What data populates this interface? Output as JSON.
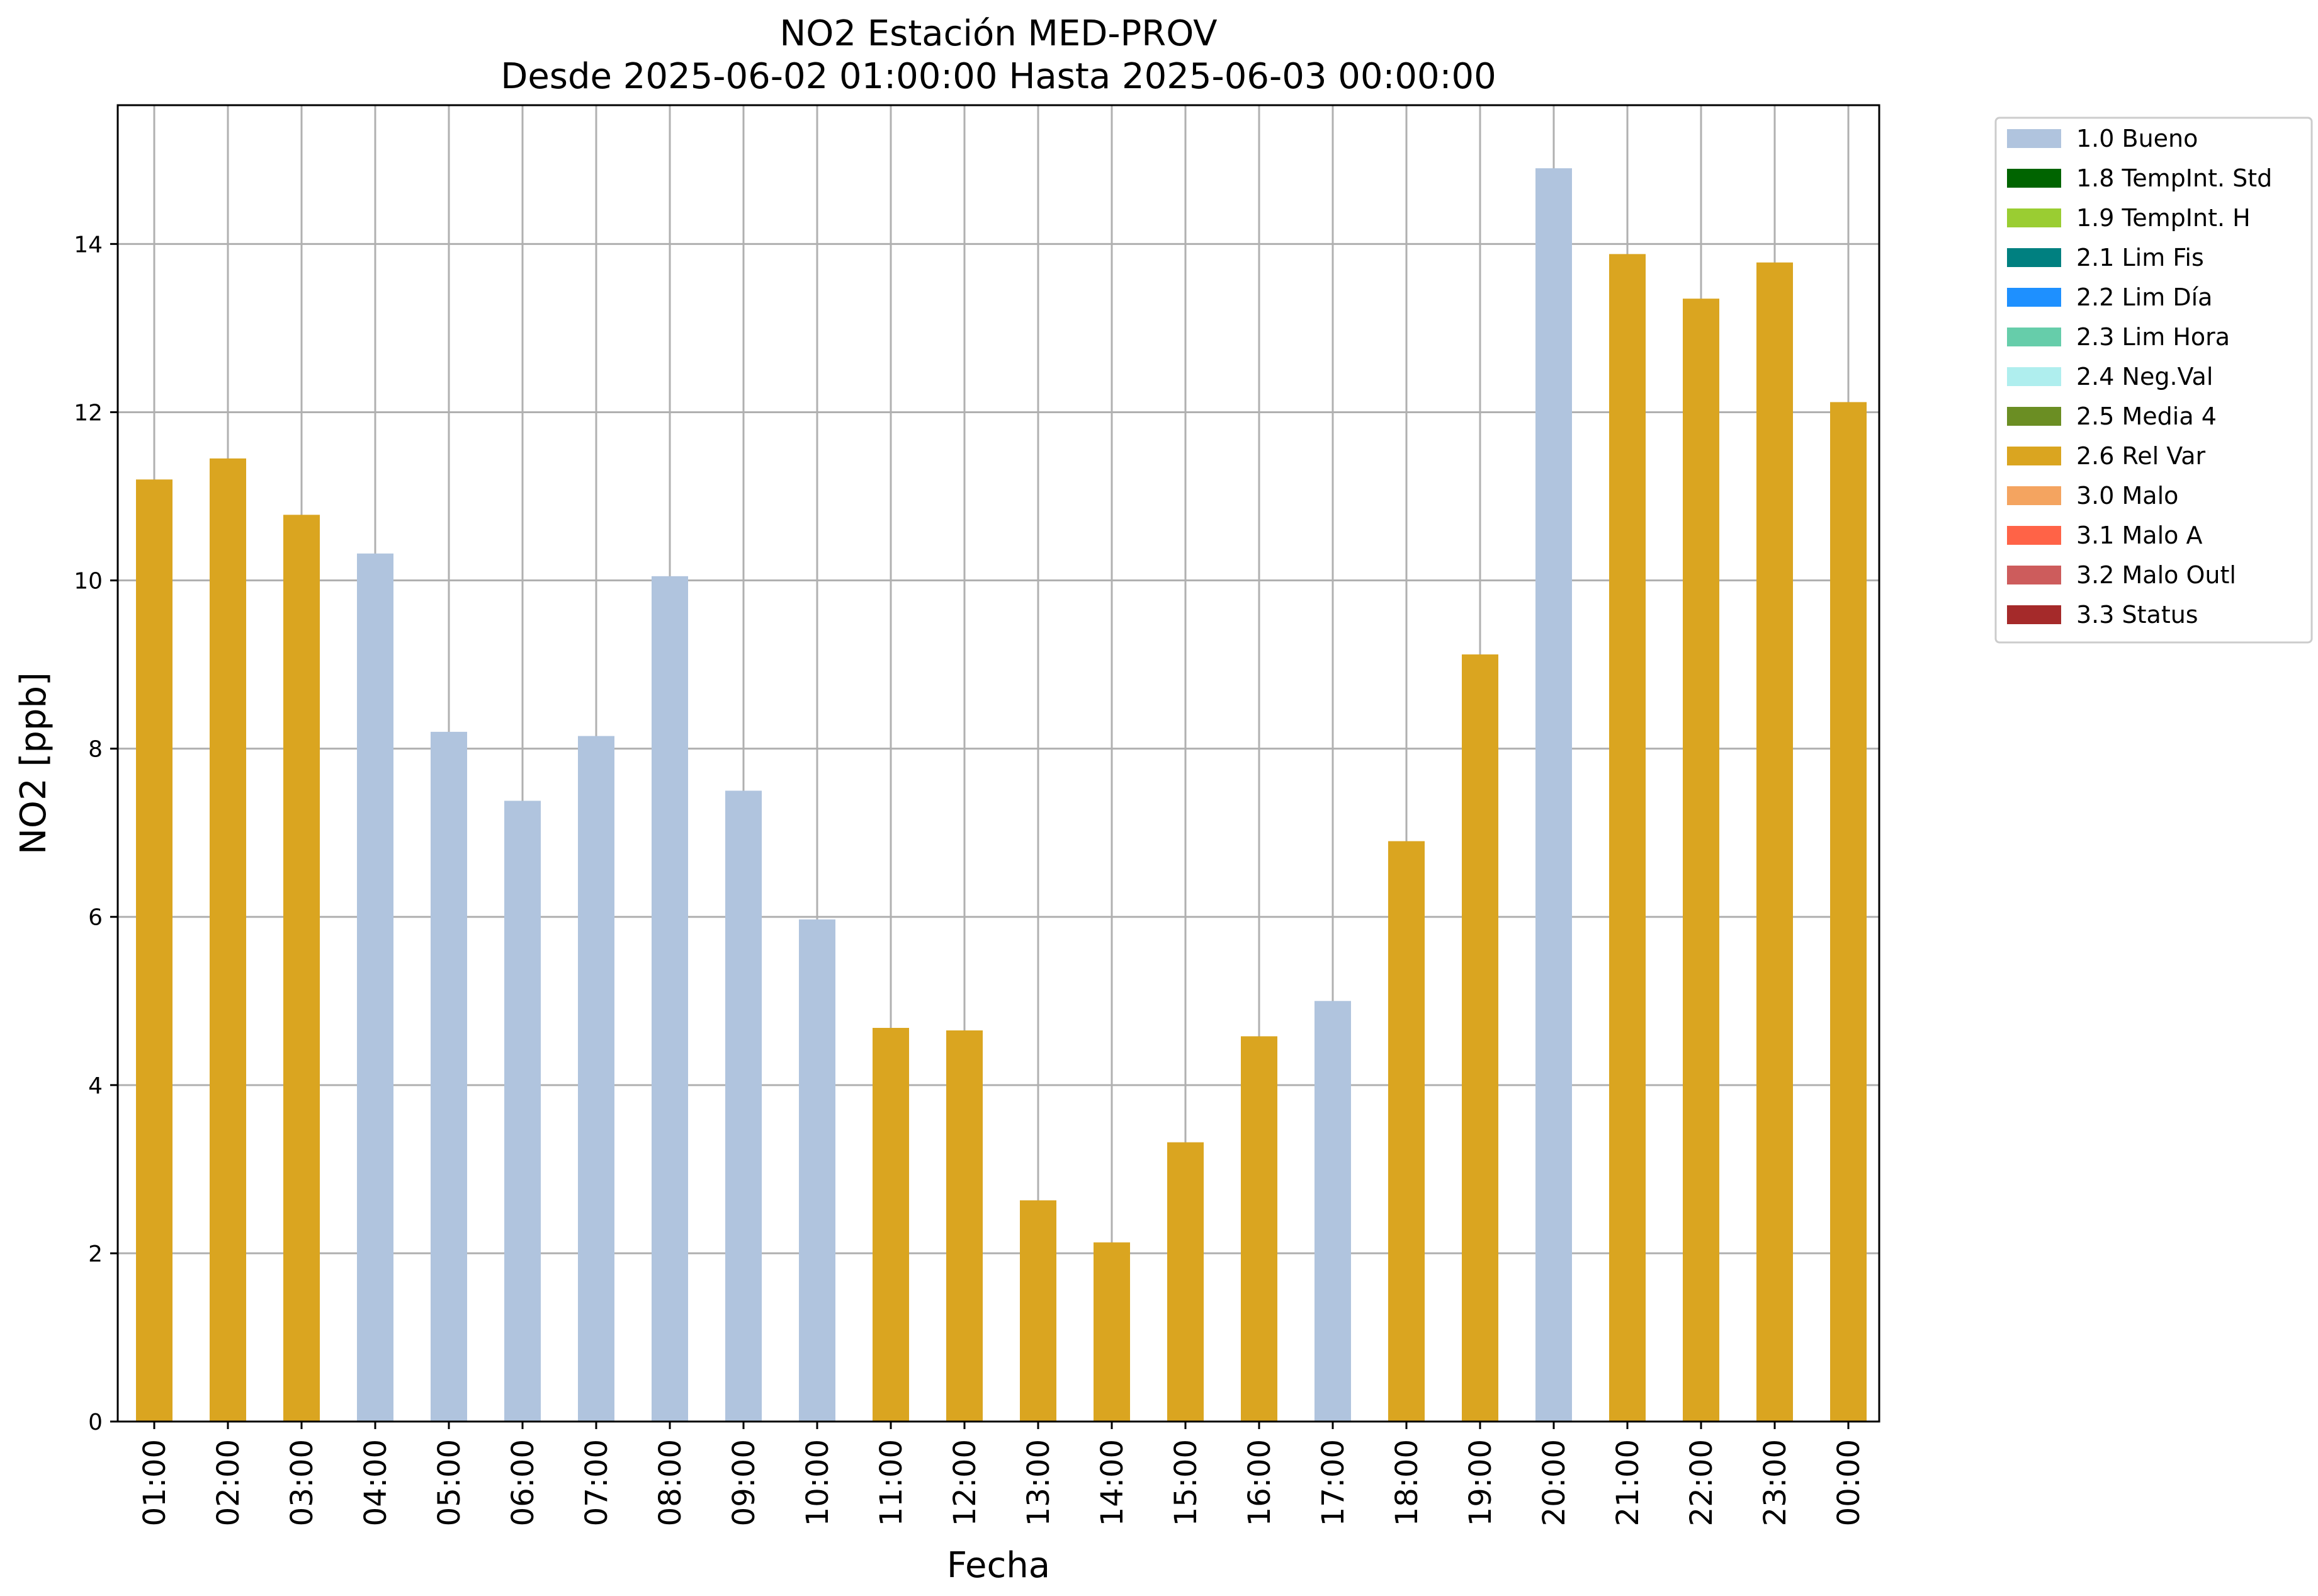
{
  "chart_data": {
    "type": "bar",
    "title": "NO2 Estación MED-PROV",
    "subtitle": "Desde 2025-06-02 01:00:00 Hasta 2025-06-03 00:00:00",
    "xlabel": "Fecha",
    "ylabel": "NO2 [ppb]",
    "ylim": [
      0,
      15.65
    ],
    "yticks": [
      "0",
      "2",
      "4",
      "6",
      "8",
      "10",
      "12",
      "14"
    ],
    "grid": true,
    "legend_position": "outside-right",
    "categories": [
      "01:00",
      "02:00",
      "03:00",
      "04:00",
      "05:00",
      "06:00",
      "07:00",
      "08:00",
      "09:00",
      "10:00",
      "11:00",
      "12:00",
      "13:00",
      "14:00",
      "15:00",
      "16:00",
      "17:00",
      "18:00",
      "19:00",
      "20:00",
      "21:00",
      "22:00",
      "23:00",
      "00:00"
    ],
    "values": [
      11.2,
      11.45,
      10.78,
      10.32,
      8.2,
      7.38,
      8.15,
      10.05,
      7.5,
      5.97,
      4.68,
      4.65,
      2.63,
      2.13,
      3.32,
      4.58,
      5.0,
      6.9,
      9.12,
      14.9,
      13.88,
      13.35,
      13.78,
      12.12
    ],
    "flags": [
      "2.6 Rel Var",
      "2.6 Rel Var",
      "2.6 Rel Var",
      "1.0 Bueno",
      "1.0 Bueno",
      "1.0 Bueno",
      "1.0 Bueno",
      "1.0 Bueno",
      "1.0 Bueno",
      "1.0 Bueno",
      "2.6 Rel Var",
      "2.6 Rel Var",
      "2.6 Rel Var",
      "2.6 Rel Var",
      "2.6 Rel Var",
      "2.6 Rel Var",
      "1.0 Bueno",
      "2.6 Rel Var",
      "2.6 Rel Var",
      "1.0 Bueno",
      "2.6 Rel Var",
      "2.6 Rel Var",
      "2.6 Rel Var",
      "2.6 Rel Var"
    ],
    "legend": [
      {
        "label": "1.0 Bueno",
        "color": "#b0c4de"
      },
      {
        "label": "1.8 TempInt. Std",
        "color": "#006400"
      },
      {
        "label": "1.9 TempInt. H",
        "color": "#9acd32"
      },
      {
        "label": "2.1 Lim Fis",
        "color": "#008080"
      },
      {
        "label": "2.2 Lim Día",
        "color": "#1e90ff"
      },
      {
        "label": "2.3 Lim Hora",
        "color": "#66cdaa"
      },
      {
        "label": "2.4 Neg.Val",
        "color": "#afeeee"
      },
      {
        "label": "2.5 Media 4",
        "color": "#6b8e23"
      },
      {
        "label": "2.6 Rel Var",
        "color": "#daa520"
      },
      {
        "label": "3.0 Malo",
        "color": "#f4a460"
      },
      {
        "label": "3.1 Malo A",
        "color": "#ff6347"
      },
      {
        "label": "3.2 Malo Outl",
        "color": "#cd5c5c"
      },
      {
        "label": "3.3 Status",
        "color": "#a52a2a"
      }
    ]
  }
}
